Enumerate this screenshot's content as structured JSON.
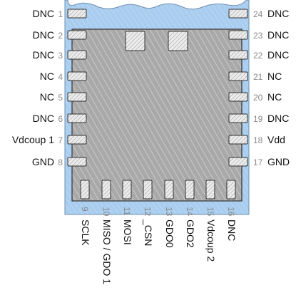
{
  "title": "",
  "colors": {
    "package_fill": "#a9cdef",
    "package_stroke": "#6f8fae",
    "die_fill": "#a9a9a9",
    "die_stroke": "#333333",
    "pad_fill": "#e6e6e6",
    "pad_stroke": "#333333",
    "hatch": "#ffffff"
  },
  "pins": {
    "left": [
      {
        "number": "1",
        "name": "DNC"
      },
      {
        "number": "2",
        "name": "DNC"
      },
      {
        "number": "3",
        "name": "DNC"
      },
      {
        "number": "4",
        "name": "NC"
      },
      {
        "number": "5",
        "name": "NC"
      },
      {
        "number": "6",
        "name": "DNC"
      },
      {
        "number": "7",
        "name": "Vdcoup 1"
      },
      {
        "number": "8",
        "name": "GND"
      }
    ],
    "bottom": [
      {
        "number": "9",
        "name": "SCLK"
      },
      {
        "number": "10",
        "name": "MISO / GDO 1"
      },
      {
        "number": "11",
        "name": "MOSI"
      },
      {
        "number": "12",
        "name": "_CSN"
      },
      {
        "number": "13",
        "name": "GDO0"
      },
      {
        "number": "14",
        "name": "GDO2"
      },
      {
        "number": "15",
        "name": "Vdcoup 2"
      },
      {
        "number": "16",
        "name": "DNC"
      }
    ],
    "right": [
      {
        "number": "17",
        "name": "GND"
      },
      {
        "number": "18",
        "name": "Vdd"
      },
      {
        "number": "19",
        "name": "DNC"
      },
      {
        "number": "20",
        "name": "NC"
      },
      {
        "number": "21",
        "name": "NC"
      },
      {
        "number": "22",
        "name": "DNC"
      },
      {
        "number": "23",
        "name": "DNC"
      },
      {
        "number": "24",
        "name": "DNC"
      }
    ]
  },
  "top_pads_count": 2
}
